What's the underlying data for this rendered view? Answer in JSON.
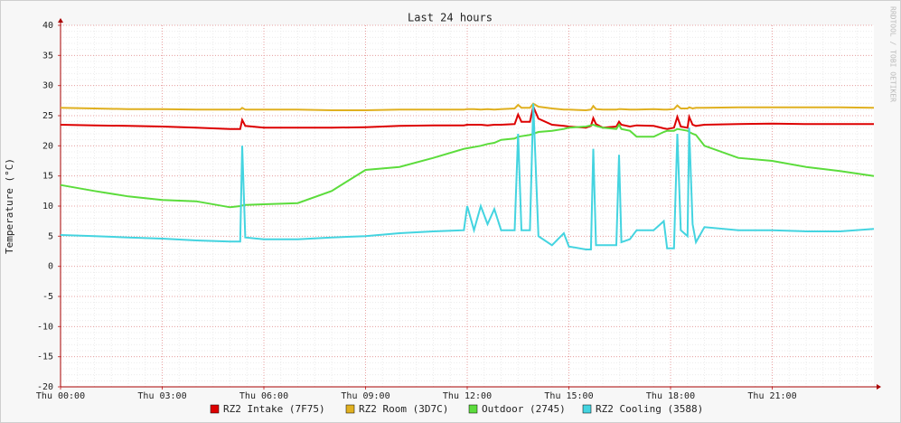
{
  "chart_data": {
    "type": "line",
    "title": "Last 24 hours",
    "y_label": "Temperature (°C)",
    "watermark": "RRDTOOL / TOBI OETIKER",
    "xlim": [
      0,
      24
    ],
    "ylim": [
      -20,
      40
    ],
    "grid": true,
    "xticks": [
      {
        "value": 0,
        "label": "Thu 00:00"
      },
      {
        "value": 3,
        "label": "Thu 03:00"
      },
      {
        "value": 6,
        "label": "Thu 06:00"
      },
      {
        "value": 9,
        "label": "Thu 09:00"
      },
      {
        "value": 12,
        "label": "Thu 12:00"
      },
      {
        "value": 15,
        "label": "Thu 15:00"
      },
      {
        "value": 18,
        "label": "Thu 18:00"
      },
      {
        "value": 21,
        "label": "Thu 21:00"
      }
    ],
    "yticks": [
      -20,
      -15,
      -10,
      -5,
      0,
      5,
      10,
      15,
      20,
      25,
      30,
      35,
      40
    ],
    "x": [
      0,
      1,
      2,
      3,
      4,
      5,
      5.3,
      5.36,
      5.45,
      6,
      7,
      8,
      9,
      10,
      11,
      11.9,
      12,
      12.2,
      12.4,
      12.6,
      12.8,
      13,
      13.4,
      13.5,
      13.6,
      13.85,
      13.95,
      14.1,
      14.5,
      14.85,
      15,
      15.5,
      15.65,
      15.72,
      15.8,
      16,
      16.4,
      16.48,
      16.55,
      16.8,
      17,
      17.5,
      17.8,
      17.9,
      18.1,
      18.2,
      18.3,
      18.5,
      18.55,
      18.65,
      18.75,
      19,
      20,
      21,
      22,
      23,
      24
    ],
    "series": [
      {
        "name": "RZ2 Intake (7F75)",
        "color": "#dd0000",
        "values": [
          23.5,
          23.4,
          23.3,
          23.2,
          23.0,
          22.8,
          22.8,
          24.3,
          23.3,
          23.0,
          23.0,
          23.0,
          23.1,
          23.3,
          23.4,
          23.4,
          23.5,
          23.5,
          23.5,
          23.4,
          23.5,
          23.5,
          23.6,
          25.2,
          24.0,
          24.0,
          26.5,
          24.5,
          23.5,
          23.3,
          23.2,
          23.0,
          23.3,
          24.6,
          23.6,
          23.0,
          23.2,
          24.0,
          23.5,
          23.2,
          23.4,
          23.3,
          22.9,
          22.8,
          23.0,
          24.8,
          23.2,
          23.0,
          24.8,
          23.5,
          23.3,
          23.5,
          23.6,
          23.7,
          23.6,
          23.6,
          23.6
        ]
      },
      {
        "name": "RZ2 Room (3D7C)",
        "color": "#e0b020",
        "values": [
          26.3,
          26.2,
          26.1,
          26.1,
          26.0,
          26.0,
          26.0,
          26.3,
          26.0,
          26.0,
          26.0,
          25.9,
          25.9,
          26.0,
          26.0,
          26.0,
          26.1,
          26.1,
          26.0,
          26.1,
          26.0,
          26.1,
          26.2,
          26.8,
          26.3,
          26.3,
          27.0,
          26.5,
          26.2,
          26.0,
          26.0,
          25.9,
          26.0,
          26.6,
          26.1,
          26.0,
          26.0,
          26.1,
          26.1,
          26.0,
          26.0,
          26.1,
          26.0,
          26.0,
          26.1,
          26.7,
          26.2,
          26.2,
          26.4,
          26.2,
          26.3,
          26.3,
          26.4,
          26.4,
          26.4,
          26.4,
          26.3
        ]
      },
      {
        "name": "Outdoor (2745)",
        "color": "#5cdc3c",
        "values": [
          13.5,
          12.5,
          11.6,
          11.0,
          10.8,
          9.8,
          10.0,
          10.1,
          10.2,
          10.3,
          10.5,
          12.5,
          16.0,
          16.5,
          18.0,
          19.5,
          19.6,
          19.8,
          20.0,
          20.3,
          20.5,
          21.0,
          21.2,
          21.5,
          21.6,
          21.8,
          22.0,
          22.3,
          22.5,
          22.8,
          23.0,
          23.2,
          23.4,
          23.5,
          23.3,
          23.0,
          22.8,
          23.5,
          22.8,
          22.5,
          21.5,
          21.5,
          22.3,
          22.5,
          22.5,
          22.8,
          22.7,
          22.5,
          22.3,
          22.0,
          21.8,
          20.0,
          18.0,
          17.5,
          16.5,
          15.8,
          15.0
        ]
      },
      {
        "name": "RZ2 Cooling (3588)",
        "color": "#44d4e0",
        "values": [
          5.2,
          5.0,
          4.8,
          4.6,
          4.3,
          4.1,
          4.1,
          20.0,
          4.8,
          4.5,
          4.5,
          4.8,
          5.0,
          5.5,
          5.8,
          6.0,
          10.0,
          6.0,
          10.0,
          7.0,
          9.5,
          6.0,
          6.0,
          22.0,
          6.0,
          6.0,
          27.0,
          5.0,
          3.5,
          5.5,
          3.3,
          2.8,
          2.8,
          19.5,
          3.5,
          3.5,
          3.5,
          18.5,
          4.0,
          4.5,
          6.0,
          6.0,
          7.5,
          3.0,
          3.0,
          22.0,
          6.0,
          5.0,
          23.0,
          7.0,
          4.0,
          6.5,
          6.0,
          6.0,
          5.8,
          5.8,
          6.2
        ]
      }
    ]
  }
}
